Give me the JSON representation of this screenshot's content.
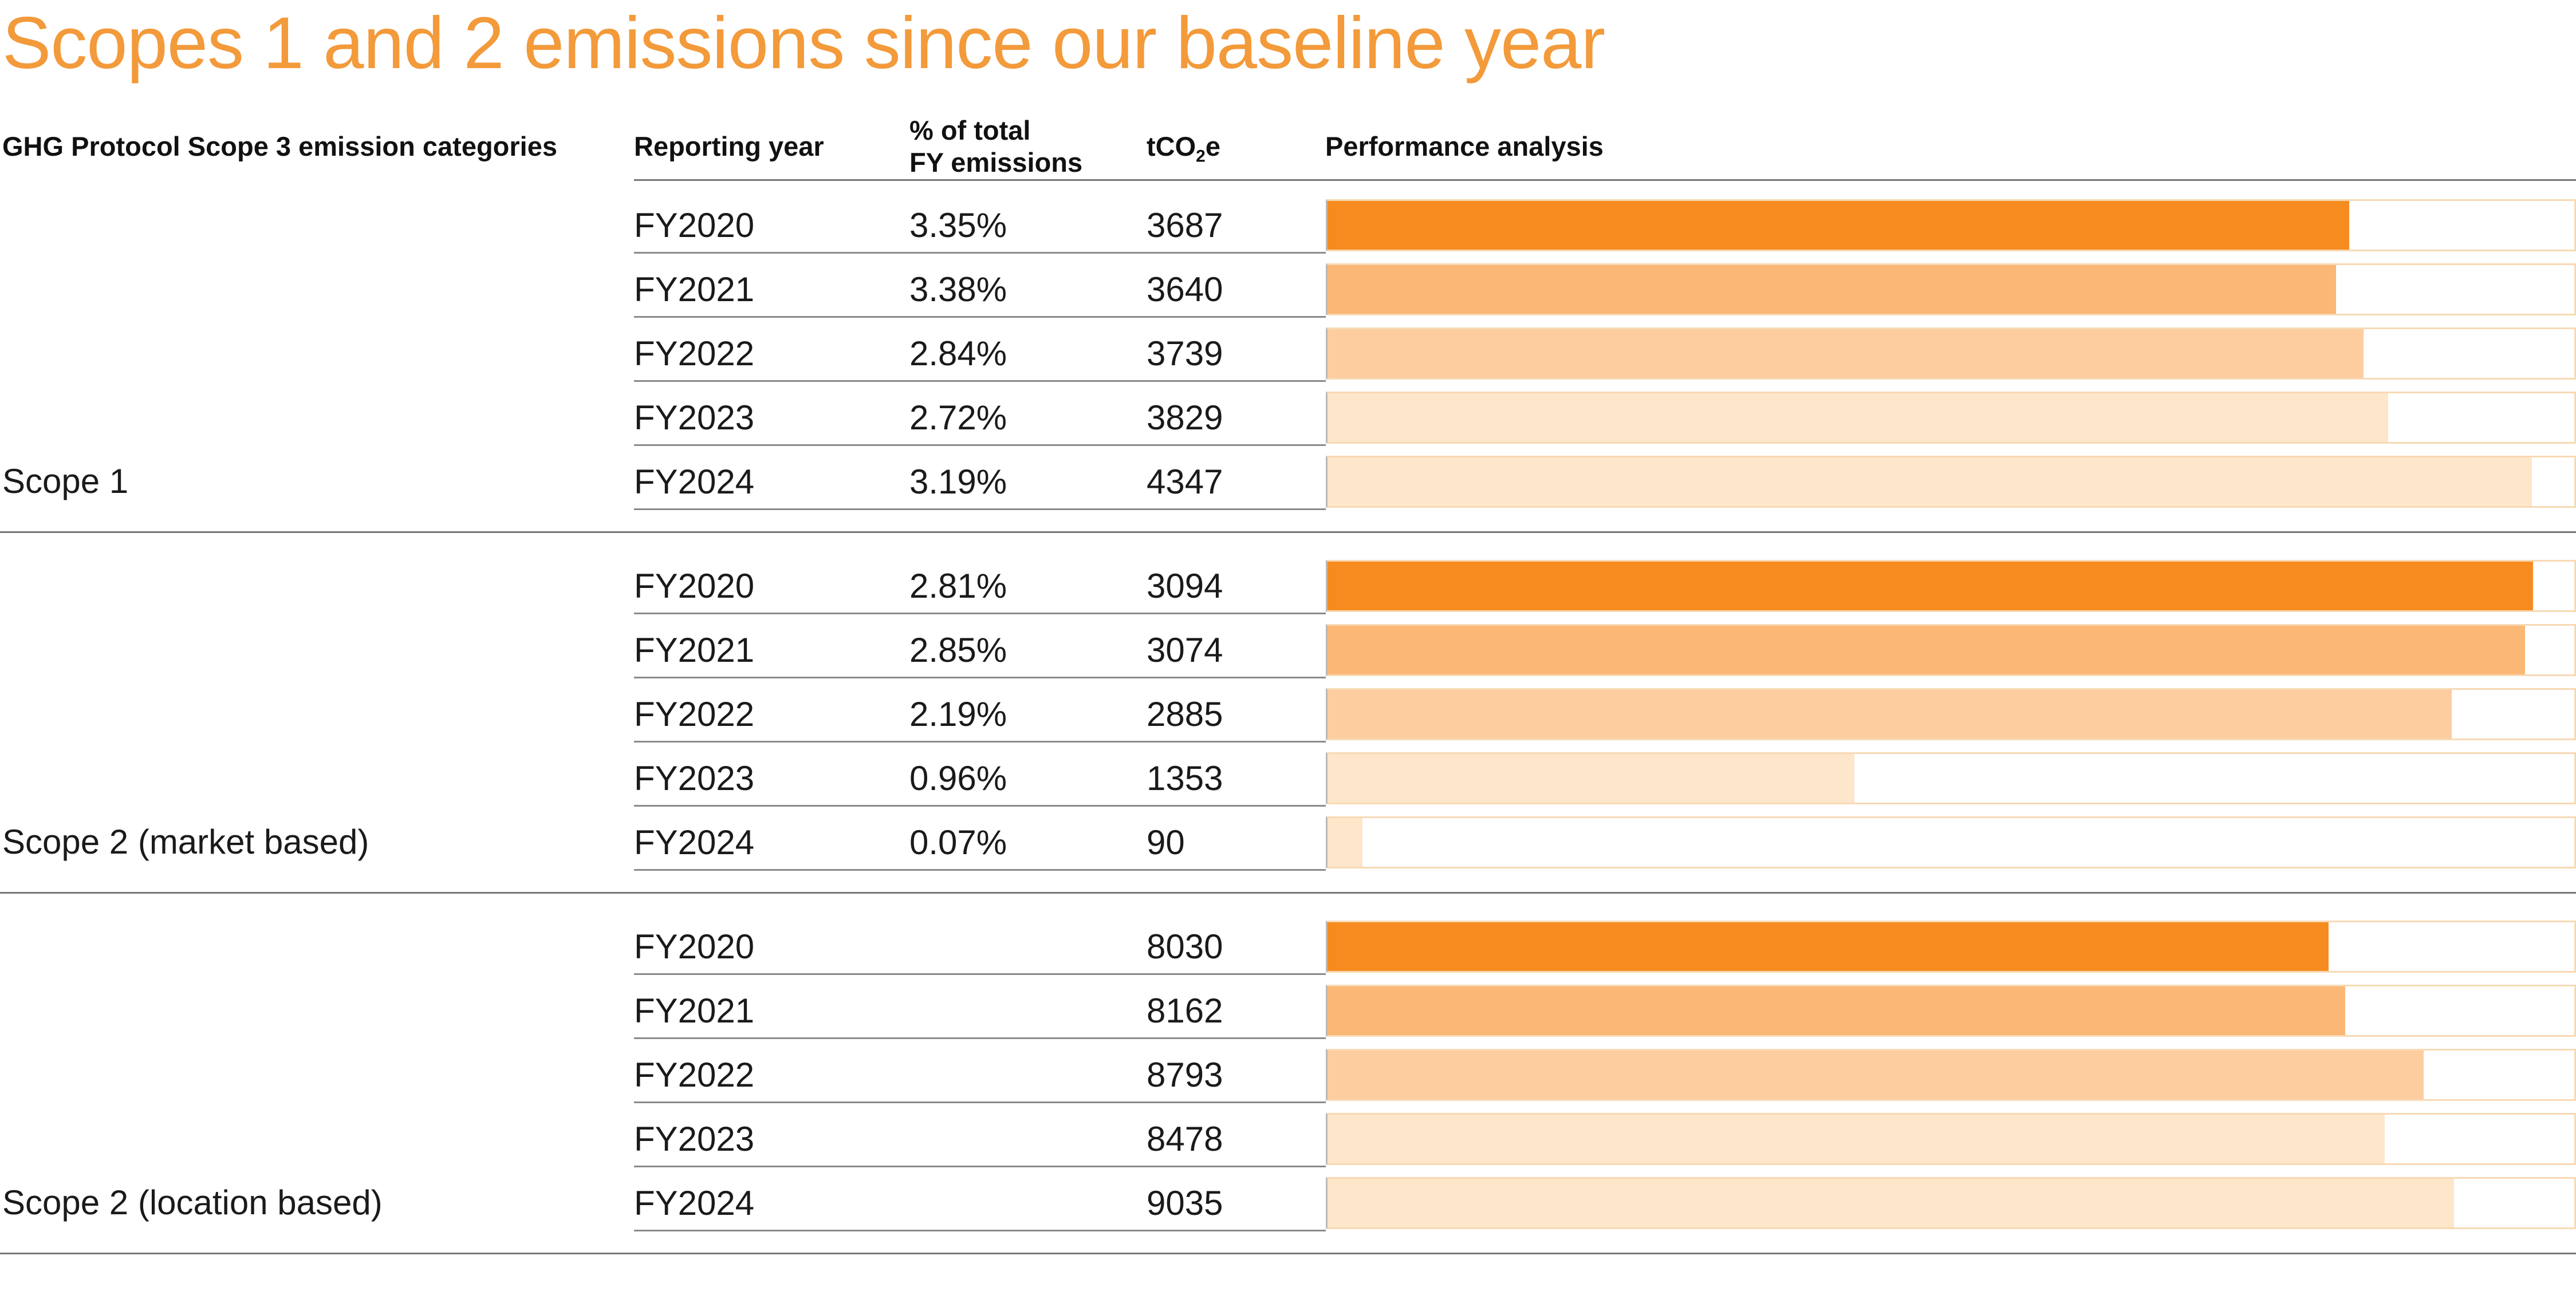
{
  "title": "Scopes 1 and 2 emissions since our baseline year",
  "headers": {
    "category": "GHG Protocol Scope 3 emission categories",
    "year": "Reporting year",
    "pct_line1": "% of total",
    "pct_line2": "FY emissions",
    "t_prefix": "tCO",
    "t_sub": "2",
    "t_suffix": "e",
    "performance": "Performance analysis"
  },
  "colors": {
    "title": "#f39a3b",
    "bar_shades": [
      "#f68c1f",
      "#fbb775",
      "#fdcda0",
      "#fee6cb",
      "#fee6cb"
    ]
  },
  "chart_data": {
    "type": "bar",
    "groups": [
      {
        "label": "Scope 1",
        "scale_max": 4500,
        "rows": [
          {
            "year": "FY2020",
            "pct": "3.35%",
            "value": 3687
          },
          {
            "year": "FY2021",
            "pct": "3.38%",
            "value": 3640
          },
          {
            "year": "FY2022",
            "pct": "2.84%",
            "value": 3739
          },
          {
            "year": "FY2023",
            "pct": "2.72%",
            "value": 3829
          },
          {
            "year": "FY2024",
            "pct": "3.19%",
            "value": 4347
          }
        ]
      },
      {
        "label": "Scope 2 (market based)",
        "scale_max": 3200,
        "rows": [
          {
            "year": "FY2020",
            "pct": "2.81%",
            "value": 3094
          },
          {
            "year": "FY2021",
            "pct": "2.85%",
            "value": 3074
          },
          {
            "year": "FY2022",
            "pct": "2.19%",
            "value": 2885
          },
          {
            "year": "FY2023",
            "pct": "0.96%",
            "value": 1353
          },
          {
            "year": "FY2024",
            "pct": "0.07%",
            "value": 90
          }
        ]
      },
      {
        "label": "Scope 2 (location based)",
        "scale_max": 10000,
        "rows": [
          {
            "year": "FY2020",
            "pct": "",
            "value": 8030
          },
          {
            "year": "FY2021",
            "pct": "",
            "value": 8162
          },
          {
            "year": "FY2022",
            "pct": "",
            "value": 8793
          },
          {
            "year": "FY2023",
            "pct": "",
            "value": 8478
          },
          {
            "year": "FY2024",
            "pct": "",
            "value": 9035
          }
        ]
      }
    ]
  }
}
